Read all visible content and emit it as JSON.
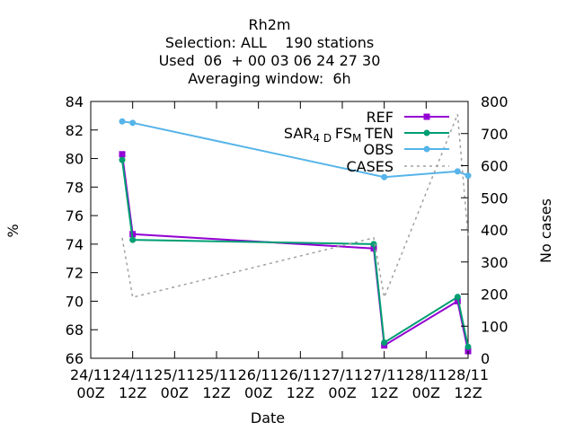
{
  "titles": [
    "Rh2m",
    "Selection: ALL    190 stations",
    "Used  06  + 00 03 06 24 27 30",
    "Averaging window:  6h"
  ],
  "chart_data": {
    "type": "line",
    "xlabel": "Date",
    "ylabel": "%",
    "y2label": "No cases",
    "xlim": [
      "2014-11-24T00:00",
      "2014-11-28T12:00"
    ],
    "ylim": [
      66,
      84
    ],
    "y2lim": [
      0,
      800
    ],
    "yticks": [
      66,
      68,
      70,
      72,
      74,
      76,
      78,
      80,
      82,
      84
    ],
    "y2ticks": [
      0,
      100,
      200,
      300,
      400,
      500,
      600,
      700,
      800
    ],
    "xticks": [
      {
        "x": "2014-11-24T00:00",
        "day": "24/11",
        "hour": "00Z"
      },
      {
        "x": "2014-11-24T12:00",
        "day": "24/11",
        "hour": "12Z"
      },
      {
        "x": "2014-11-25T00:00",
        "day": "25/11",
        "hour": "00Z"
      },
      {
        "x": "2014-11-25T12:00",
        "day": "25/11",
        "hour": "12Z"
      },
      {
        "x": "2014-11-26T00:00",
        "day": "26/11",
        "hour": "00Z"
      },
      {
        "x": "2014-11-26T12:00",
        "day": "26/11",
        "hour": "12Z"
      },
      {
        "x": "2014-11-27T00:00",
        "day": "27/11",
        "hour": "00Z"
      },
      {
        "x": "2014-11-27T12:00",
        "day": "27/11",
        "hour": "12Z"
      },
      {
        "x": "2014-11-28T00:00",
        "day": "28/11",
        "hour": "00Z"
      },
      {
        "x": "2014-11-28T12:00",
        "day": "28/11",
        "hour": "12Z"
      }
    ],
    "legend_position": "top-right",
    "series": [
      {
        "name": "REF",
        "color": "#9400d3",
        "marker": "square",
        "axis": "y1",
        "x": [
          "2014-11-24T09:00",
          "2014-11-24T12:00",
          "2014-11-27T09:00",
          "2014-11-27T12:00",
          "2014-11-28T09:00",
          "2014-11-28T12:00"
        ],
        "values": [
          80.3,
          74.7,
          73.7,
          66.9,
          70.0,
          66.5
        ]
      },
      {
        "name": "SAR_4D FS_M TEN",
        "label_main": "SAR",
        "label_sub1": "4 D",
        "label_mid": "FS",
        "label_sub2": "M",
        "label_end": "TEN",
        "color": "#009e73",
        "marker": "circle",
        "axis": "y1",
        "x": [
          "2014-11-24T09:00",
          "2014-11-24T12:00",
          "2014-11-27T09:00",
          "2014-11-27T12:00",
          "2014-11-28T09:00",
          "2014-11-28T12:00"
        ],
        "values": [
          79.9,
          74.3,
          74.0,
          67.1,
          70.3,
          66.8
        ]
      },
      {
        "name": "OBS",
        "color": "#56b4e9",
        "marker": "circle",
        "axis": "y1",
        "x": [
          "2014-11-24T09:00",
          "2014-11-24T12:00",
          "2014-11-27T12:00",
          "2014-11-28T09:00",
          "2014-11-28T12:00"
        ],
        "values": [
          82.6,
          82.5,
          78.7,
          79.1,
          78.8
        ]
      },
      {
        "name": "CASES",
        "color": "#a0a0a0",
        "dash": true,
        "axis": "y2",
        "x": [
          "2014-11-24T09:00",
          "2014-11-24T12:00",
          "2014-11-27T09:00",
          "2014-11-27T12:00",
          "2014-11-28T09:00",
          "2014-11-28T12:00"
        ],
        "values": [
          375,
          190,
          375,
          190,
          760,
          380
        ]
      }
    ]
  }
}
